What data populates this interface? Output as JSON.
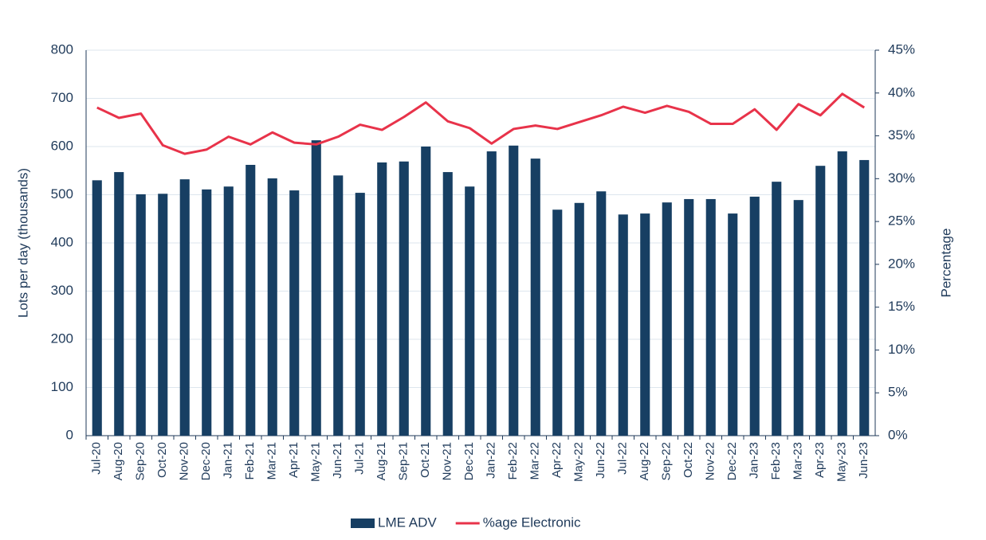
{
  "chart_data": {
    "type": "bar-line",
    "y_label": "Lots per day (thousands)",
    "y2_label": "Percentage",
    "categories": [
      "Jul-20",
      "Aug-20",
      "Sep-20",
      "Oct-20",
      "Nov-20",
      "Dec-20",
      "Jan-21",
      "Feb-21",
      "Mar-21",
      "Apr-21",
      "May-21",
      "Jun-21",
      "Jul-21",
      "Aug-21",
      "Sep-21",
      "Oct-21",
      "Nov-21",
      "Dec-21",
      "Jan-22",
      "Feb-22",
      "Mar-22",
      "Apr-22",
      "May-22",
      "Jun-22",
      "Jul-22",
      "Aug-22",
      "Sep-22",
      "Oct-22",
      "Nov-22",
      "Dec-22",
      "Jan-23",
      "Feb-23",
      "Mar-23",
      "Apr-23",
      "May-23",
      "Jun-23"
    ],
    "series": [
      {
        "name": "LME ADV",
        "type": "bar",
        "color": "#173f63",
        "values": [
          530,
          547,
          501,
          502,
          532,
          511,
          517,
          562,
          534,
          509,
          613,
          540,
          504,
          567,
          569,
          600,
          547,
          517,
          590,
          602,
          575,
          469,
          483,
          507,
          459,
          461,
          484,
          491,
          491,
          461,
          496,
          527,
          489,
          560,
          590,
          572
        ]
      },
      {
        "name": "%age Electronic",
        "type": "line",
        "axis": "y2",
        "color": "#e8334a",
        "values": [
          38.3,
          37.1,
          37.6,
          33.9,
          32.9,
          33.4,
          34.9,
          34.0,
          35.4,
          34.2,
          34.0,
          34.9,
          36.3,
          35.7,
          37.2,
          38.9,
          36.7,
          35.9,
          34.1,
          35.8,
          36.2,
          35.8,
          36.6,
          37.4,
          38.4,
          37.7,
          38.5,
          37.8,
          36.4,
          36.4,
          38.1,
          35.7,
          38.7,
          37.4,
          39.9,
          38.3
        ]
      }
    ],
    "ylim": [
      0,
      800
    ],
    "yticks": [
      0,
      100,
      200,
      300,
      400,
      500,
      600,
      700,
      800
    ],
    "y2lim": [
      0,
      45
    ],
    "y2ticks": [
      {
        "value": 0,
        "label": "0%"
      },
      {
        "value": 5,
        "label": "5%"
      },
      {
        "value": 10,
        "label": "10%"
      },
      {
        "value": 15,
        "label": "15%"
      },
      {
        "value": 20,
        "label": "20%"
      },
      {
        "value": 25,
        "label": "25%"
      },
      {
        "value": 30,
        "label": "30%"
      },
      {
        "value": 35,
        "label": "35%"
      },
      {
        "value": 40,
        "label": "40%"
      },
      {
        "value": 45,
        "label": "45%"
      }
    ],
    "grid": true,
    "legend": "bottom"
  }
}
